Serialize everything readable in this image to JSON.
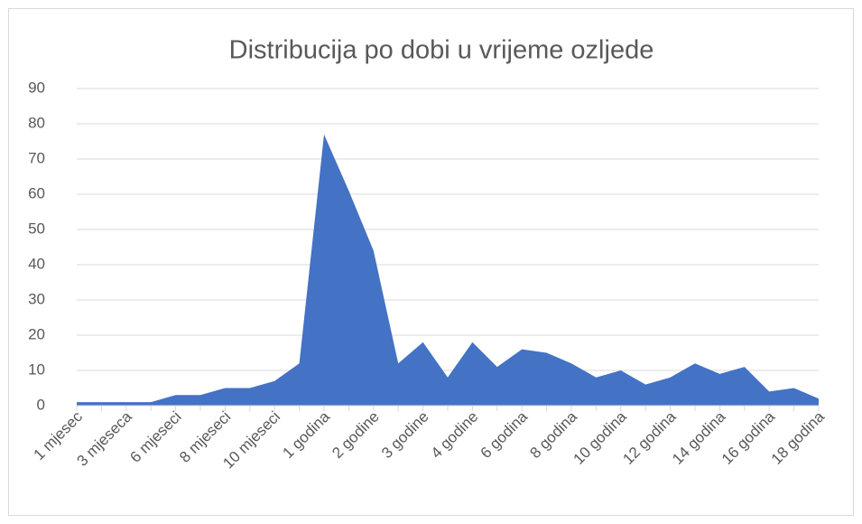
{
  "chart_data": {
    "type": "area",
    "title": "Distribucija po dobi u vrijeme ozljede",
    "categories": [
      "1 mjesec",
      null,
      "3 mjeseca",
      null,
      "6 mjeseci",
      null,
      "8 mjeseci",
      null,
      "10 mjeseci",
      null,
      "1 godina",
      null,
      "2 godine",
      null,
      "3 godine",
      null,
      "4 godine",
      null,
      "6 godina",
      null,
      "8 godina",
      null,
      "10 godina",
      null,
      "12 godina",
      null,
      "14 godina",
      null,
      "16 godina",
      null,
      "18 godina"
    ],
    "values": [
      1,
      1,
      1,
      1,
      3,
      3,
      5,
      5,
      7,
      12,
      77,
      61,
      44,
      12,
      18,
      8,
      18,
      11,
      16,
      15,
      12,
      8,
      10,
      6,
      8,
      12,
      9,
      11,
      4,
      5,
      2
    ],
    "color": "#4472c4",
    "ylim": [
      0,
      90
    ],
    "yticks": [
      0,
      10,
      20,
      30,
      40,
      50,
      60,
      70,
      80,
      90
    ],
    "grid": true
  }
}
